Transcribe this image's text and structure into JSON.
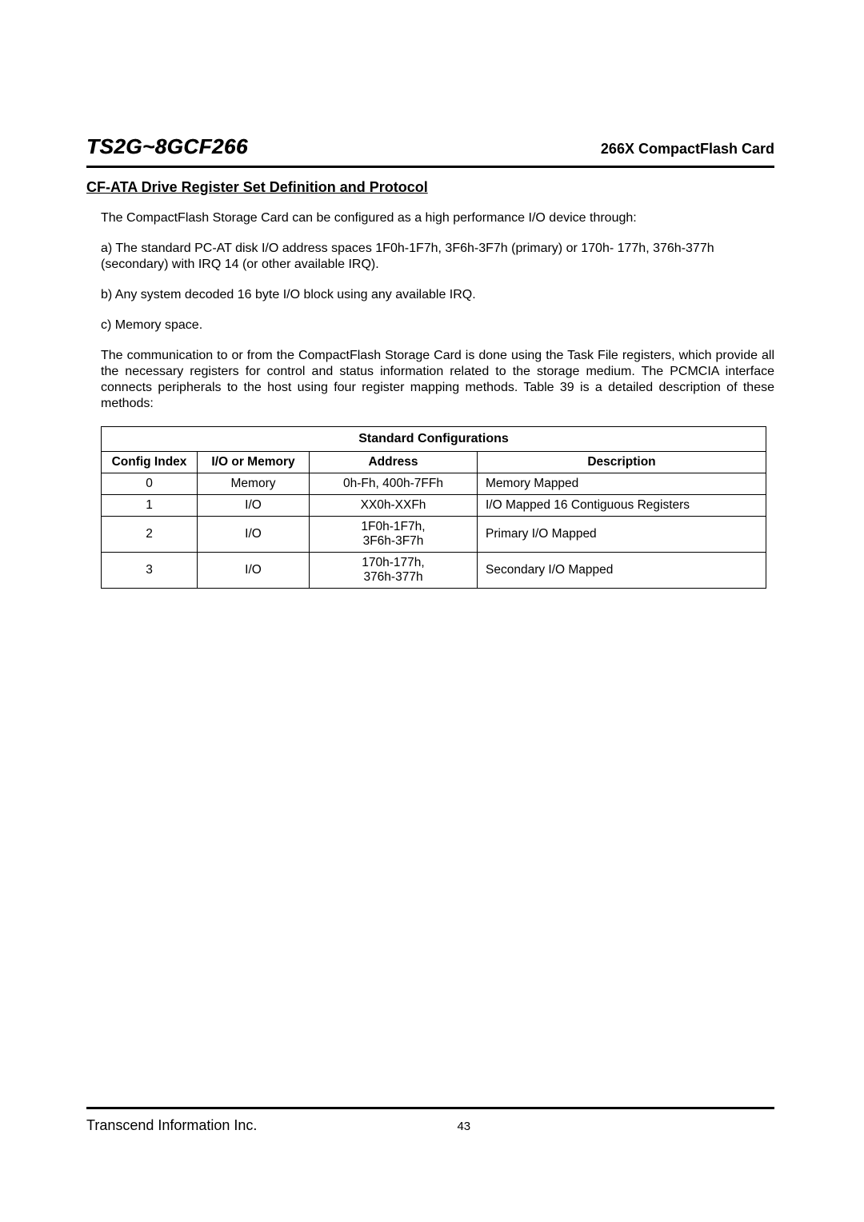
{
  "header": {
    "product": "TS2G~8GCF266",
    "tagline": "266X CompactFlash Card"
  },
  "section": {
    "title": "CF-ATA Drive Register Set Definition and Protocol",
    "p1": "The CompactFlash Storage Card can be configured as a high performance I/O device through:",
    "p2": "a) The standard PC-AT disk I/O address spaces 1F0h-1F7h, 3F6h-3F7h (primary) or 170h- 177h, 376h-377h (secondary) with IRQ 14 (or other available IRQ).",
    "p3": "b) Any system decoded 16 byte I/O block using any available IRQ.",
    "p4": "c) Memory space.",
    "p5": "The communication to or from the CompactFlash Storage Card is done using the Task File registers, which provide all the necessary registers for control and status information related to the storage medium. The PCMCIA interface connects peripherals to the host using four register mapping methods. Table 39 is a detailed description of these methods:"
  },
  "table": {
    "title": "Standard Configurations",
    "headers": {
      "c0": "Config Index",
      "c1": "I/O or Memory",
      "c2": "Address",
      "c3": "Description"
    },
    "rows": [
      {
        "idx": "0",
        "io": "Memory",
        "addr": "0h-Fh, 400h-7FFh",
        "desc": "Memory Mapped"
      },
      {
        "idx": "1",
        "io": "I/O",
        "addr": "XX0h-XXFh",
        "desc": "I/O Mapped 16 Contiguous Registers"
      },
      {
        "idx": "2",
        "io": "I/O",
        "addr": "1F0h-1F7h,\n3F6h-3F7h",
        "desc": "Primary I/O Mapped"
      },
      {
        "idx": "3",
        "io": "I/O",
        "addr": "170h-177h,\n376h-377h",
        "desc": "Secondary I/O Mapped"
      }
    ]
  },
  "footer": {
    "company": "Transcend Information Inc.",
    "page": "43"
  }
}
